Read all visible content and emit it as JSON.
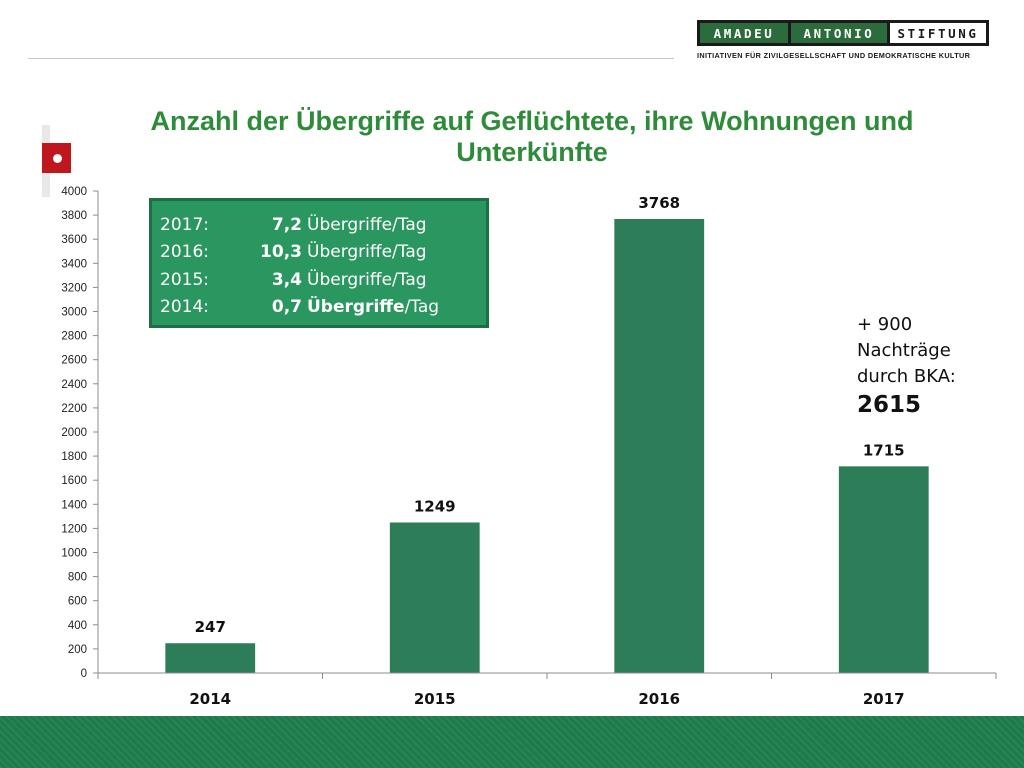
{
  "logo": {
    "word1": "AMADEU",
    "word2": "ANTONIO",
    "word3": "STIFTUNG",
    "tagline": "INITIATIVEN FÜR ZIVILGESELLSCHAFT UND DEMOKRATISCHE KULTUR"
  },
  "colors": {
    "bar": "#2c7d58",
    "title": "#2e8b3a",
    "footer": "#1d7a4b",
    "box": "#2b9760"
  },
  "info_box": {
    "rows": [
      {
        "year": "2017:",
        "value": "7,2",
        "unit": "Übergriffe/Tag"
      },
      {
        "year": "2016:",
        "value": "10,3",
        "unit": "Übergriffe/Tag"
      },
      {
        "year": "2015:",
        "value": "3,4",
        "unit": "Übergriffe/Tag"
      },
      {
        "year": "2014:",
        "value": "0,7",
        "unit_bold": "Übergriffe",
        "unit_rest": "/Tag"
      }
    ]
  },
  "annotation": {
    "line1": "+ 900",
    "line2": "Nachträge",
    "line3": "durch BKA:",
    "value": "2615"
  },
  "chart_data": {
    "type": "bar",
    "title": "Anzahl der Übergriffe auf Geflüchtete, ihre Wohnungen und Unterkünfte",
    "categories": [
      "2014",
      "2015",
      "2016",
      "2017"
    ],
    "values": [
      247,
      1249,
      3768,
      1715
    ],
    "data_labels": [
      "247",
      "1249",
      "3768",
      "1715"
    ],
    "ylim": [
      0,
      4000
    ],
    "yticks": [
      0,
      200,
      400,
      600,
      800,
      1000,
      1200,
      1400,
      1600,
      1800,
      2000,
      2200,
      2400,
      2600,
      2800,
      3000,
      3200,
      3400,
      3600,
      3800,
      4000
    ],
    "grid": false,
    "legend": "none"
  }
}
